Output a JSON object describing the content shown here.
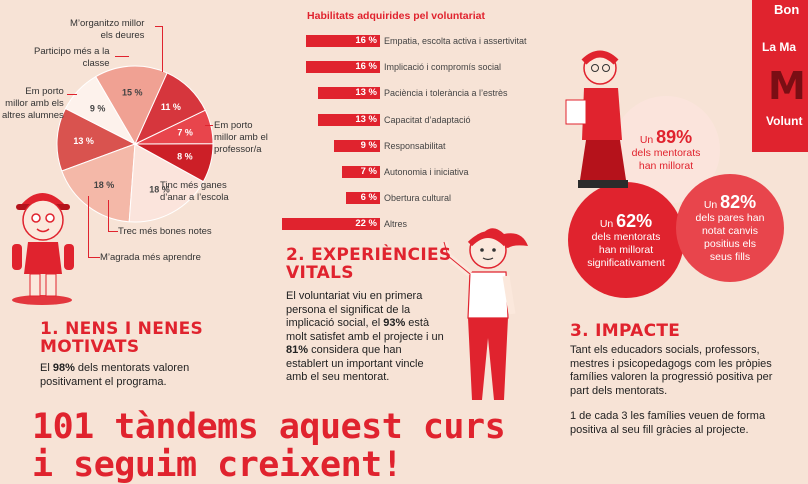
{
  "chart_data": [
    {
      "type": "pie",
      "slices": [
        {
          "label": "M’agrada més aprendre",
          "value": 13
        },
        {
          "label": "Trec més bones notes",
          "value": 18
        },
        {
          "label": "Tinc més ganes d’anar a l’escola",
          "value": 18
        },
        {
          "label": "Em porto millor amb el professor/a",
          "value": 8
        },
        {
          "label": "M’organitzo millor els deures",
          "value": 7
        },
        {
          "label": "Participo més a la classe",
          "value": 11
        },
        {
          "label": "Em porto millor amb els altres alumnes",
          "value": 15
        },
        {
          "label": "",
          "value": 9
        }
      ],
      "slice_colors": [
        "#d9534f",
        "#f4b8a8",
        "#fbe4dc",
        "#cc1f27",
        "#e8454c",
        "#d6363d",
        "#f0a193",
        "#fdf2ec"
      ]
    },
    {
      "type": "bar",
      "title": "Habilitats adquirides pel voluntariat",
      "categories": [
        "Empatia, escolta activa i assertivitat",
        "Implicació i compromís social",
        "Paciència i tolerància a l’estrès",
        "Capacitat d’adaptació",
        "Responsabilitat",
        "Autonomia i iniciativa",
        "Obertura cultural",
        "Altres"
      ],
      "values": [
        16,
        16,
        13,
        13,
        9,
        7,
        6,
        22
      ],
      "value_labels": [
        "16 %",
        "16 %",
        "13 %",
        "13 %",
        "9 %",
        "7 %",
        "6 %",
        "22 %"
      ]
    }
  ],
  "pie_labels": {
    "organitzo": "M’organitzo millor\nels deures",
    "participo": "Participo més a la\nclasse",
    "alumnes": "Em porto\nmillor amb els\naltres alumnes",
    "professor": "Em porto\nmillor amb el\nprofessor/a",
    "ganes": "Tinc més ganes\nd’anar a l’escola",
    "notes": "Trec més bones notes",
    "aprendre": "M’agrada més aprendre",
    "pct": [
      "13 %",
      "18 %",
      "18 %",
      "8 %",
      "7 %",
      "11 %",
      "15 %",
      "9 %"
    ]
  },
  "section1": {
    "title": "1. NENS I NENES\nMOTIVATS",
    "text_a": "El ",
    "text_b": "98%",
    "text_c": " dels mentorats valoren positivament el programa."
  },
  "section2": {
    "title": "2. EXPERIÈNCIES\nVITALS",
    "text_a": "El voluntariat viu en primera persona el significat de la implicació social, el ",
    "text_b": "93%",
    "text_c": " està molt satisfet amb el projecte i un ",
    "text_d": "81%",
    "text_e": " considera que han establert un important vincle amb el seu mentorat."
  },
  "section3": {
    "title": "3. IMPACTE",
    "text_1": "Tant els educadors socials, professors, mestres i psicopedagogs com les pròpies famílies valoren la progressió positiva per part dels mentorats.",
    "text_2": "1 de cada 3 les famílies veuen de forma positiva al seu fill gràcies al projecte."
  },
  "circles": {
    "c89_pre": "Un ",
    "c89_big": "89%",
    "c89_text": "dels mentorats\nhan millorat",
    "c62_pre": "Un ",
    "c62_big": "62%",
    "c62_text": "dels mentorats\nhan millorat\nsignificativament",
    "c82_pre": "Un ",
    "c82_big": "82%",
    "c82_text": "dels pares han\nnotat canvis\npositius els\nseus fills"
  },
  "headline": "101 tàndems aquest curs\ni seguim creixent!",
  "badge": {
    "b1": "Bon",
    "b2": "La Ma",
    "b3": "M",
    "b4": "Volunt"
  },
  "colors": {
    "accent": "#e0232e",
    "background": "#f7e3d6"
  }
}
